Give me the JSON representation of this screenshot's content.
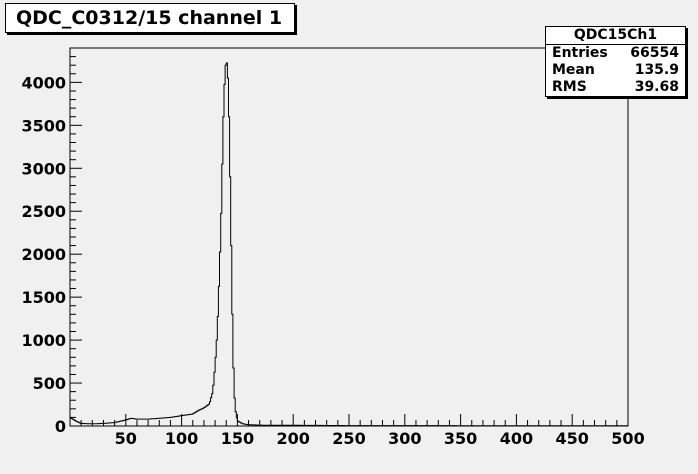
{
  "title": "QDC_C0312/15 channel 1",
  "stats": {
    "name": "QDC15Ch1",
    "rows": [
      {
        "label": "Entries",
        "value": "66554"
      },
      {
        "label": "Mean",
        "value": "135.9"
      },
      {
        "label": "RMS",
        "value": "39.68"
      }
    ]
  },
  "chart_data": {
    "type": "area",
    "title": "QDC_C0312/15 channel 1",
    "xlabel": "",
    "ylabel": "",
    "xlim": [
      0,
      500
    ],
    "ylim": [
      0,
      4400
    ],
    "x_ticks": [
      50,
      100,
      150,
      200,
      250,
      300,
      350,
      400,
      450,
      500
    ],
    "y_ticks": [
      0,
      500,
      1000,
      1500,
      2000,
      2500,
      3000,
      3500,
      4000
    ],
    "grid": false,
    "legend": "top-right",
    "series": [
      {
        "x": [
          0,
          5,
          10,
          20,
          30,
          40,
          50,
          55,
          60,
          70,
          80,
          90,
          100,
          110,
          115,
          120,
          125,
          128,
          130,
          132,
          134,
          136,
          137,
          138,
          139,
          140,
          141,
          142,
          143,
          144,
          145,
          146,
          147,
          148,
          150,
          155,
          160,
          170,
          200,
          250,
          300,
          350,
          400,
          450,
          500
        ],
        "y": [
          100,
          60,
          30,
          25,
          30,
          40,
          70,
          90,
          80,
          80,
          90,
          100,
          120,
          140,
          180,
          210,
          260,
          400,
          700,
          1100,
          1800,
          2700,
          3400,
          3800,
          4150,
          4250,
          4200,
          3900,
          3300,
          2500,
          1700,
          900,
          450,
          200,
          60,
          25,
          15,
          10,
          8,
          5,
          5,
          4,
          3,
          3,
          2
        ]
      }
    ]
  }
}
